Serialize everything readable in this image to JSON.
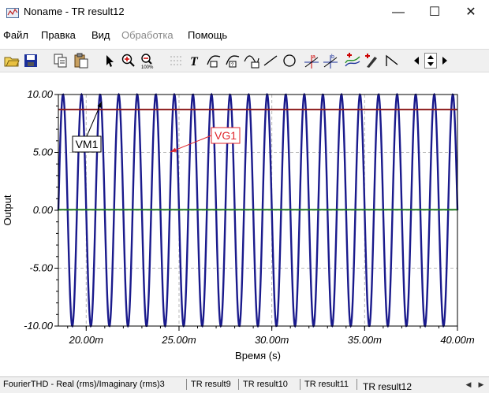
{
  "window": {
    "title": "Noname - TR result12",
    "minimize_glyph": "—",
    "maximize_glyph": "☐",
    "close_glyph": "✕"
  },
  "menu": [
    {
      "label": "Файл",
      "enabled": true
    },
    {
      "label": "Правка",
      "enabled": true
    },
    {
      "label": "Вид",
      "enabled": true
    },
    {
      "label": "Обработка",
      "enabled": false
    },
    {
      "label": "Помощь",
      "enabled": true
    }
  ],
  "toolbar": {
    "icons": [
      "open-folder-icon",
      "save-icon",
      "copy-icon",
      "paste-icon",
      "select-arrow-icon",
      "zoom-in-icon",
      "zoom-100-icon",
      "grid-icon",
      "text-tool-icon",
      "cursor-a-icon",
      "cursor-b-icon",
      "fit-curve-icon",
      "line-tool-icon",
      "circle-tool-icon",
      "crosshair-a-icon",
      "crosshair-b-icon",
      "curve-marker-icon",
      "pen-marker-icon",
      "step-icon",
      "scroll-left-icon",
      "spin-updown-icon",
      "scroll-right-icon"
    ],
    "text_glyph": "T"
  },
  "chart_data": {
    "type": "line",
    "title": "",
    "xlabel": "Время (s)",
    "ylabel": "Output",
    "xlim": [
      18.5,
      40.0
    ],
    "ylim": [
      -10.0,
      10.0
    ],
    "x_ticks": [
      "20.00m",
      "25.00m",
      "30.00m",
      "35.00m",
      "40.00m"
    ],
    "x_tick_values": [
      20,
      25,
      30,
      35,
      40
    ],
    "y_ticks": [
      "10.00",
      "5.00",
      "0.00",
      "-5.00",
      "-10.00"
    ],
    "y_tick_values": [
      10,
      5,
      0,
      -5,
      -10
    ],
    "grid": true,
    "series": [
      {
        "name": "VG1",
        "color": "#1a1a8c",
        "kind": "sine",
        "amplitude": 10.0,
        "period_ms": 1.0,
        "phase_ms": 18.75
      },
      {
        "name": "VM1",
        "color": "#8b1a1a",
        "kind": "constant",
        "value": 8.7
      },
      {
        "name": "",
        "color": "#1f7a1f",
        "kind": "constant",
        "value": 0.05
      }
    ],
    "annotations": [
      {
        "label": "VM1",
        "border": "#000000",
        "text_color": "#000000",
        "target_series": "VM1"
      },
      {
        "label": "VG1",
        "border": "#e0242b",
        "text_color": "#e0242b",
        "target_series": "VG1"
      }
    ]
  },
  "status_tabs": [
    {
      "label": "FourierTHD - Real (rms)/Imaginary (rms)3",
      "active": false
    },
    {
      "label": "TR result9",
      "active": false
    },
    {
      "label": "TR result10",
      "active": false
    },
    {
      "label": "TR result11",
      "active": false
    },
    {
      "label": "TR result12",
      "active": true
    }
  ],
  "status_nav": {
    "left": "◀",
    "right": "▶"
  }
}
